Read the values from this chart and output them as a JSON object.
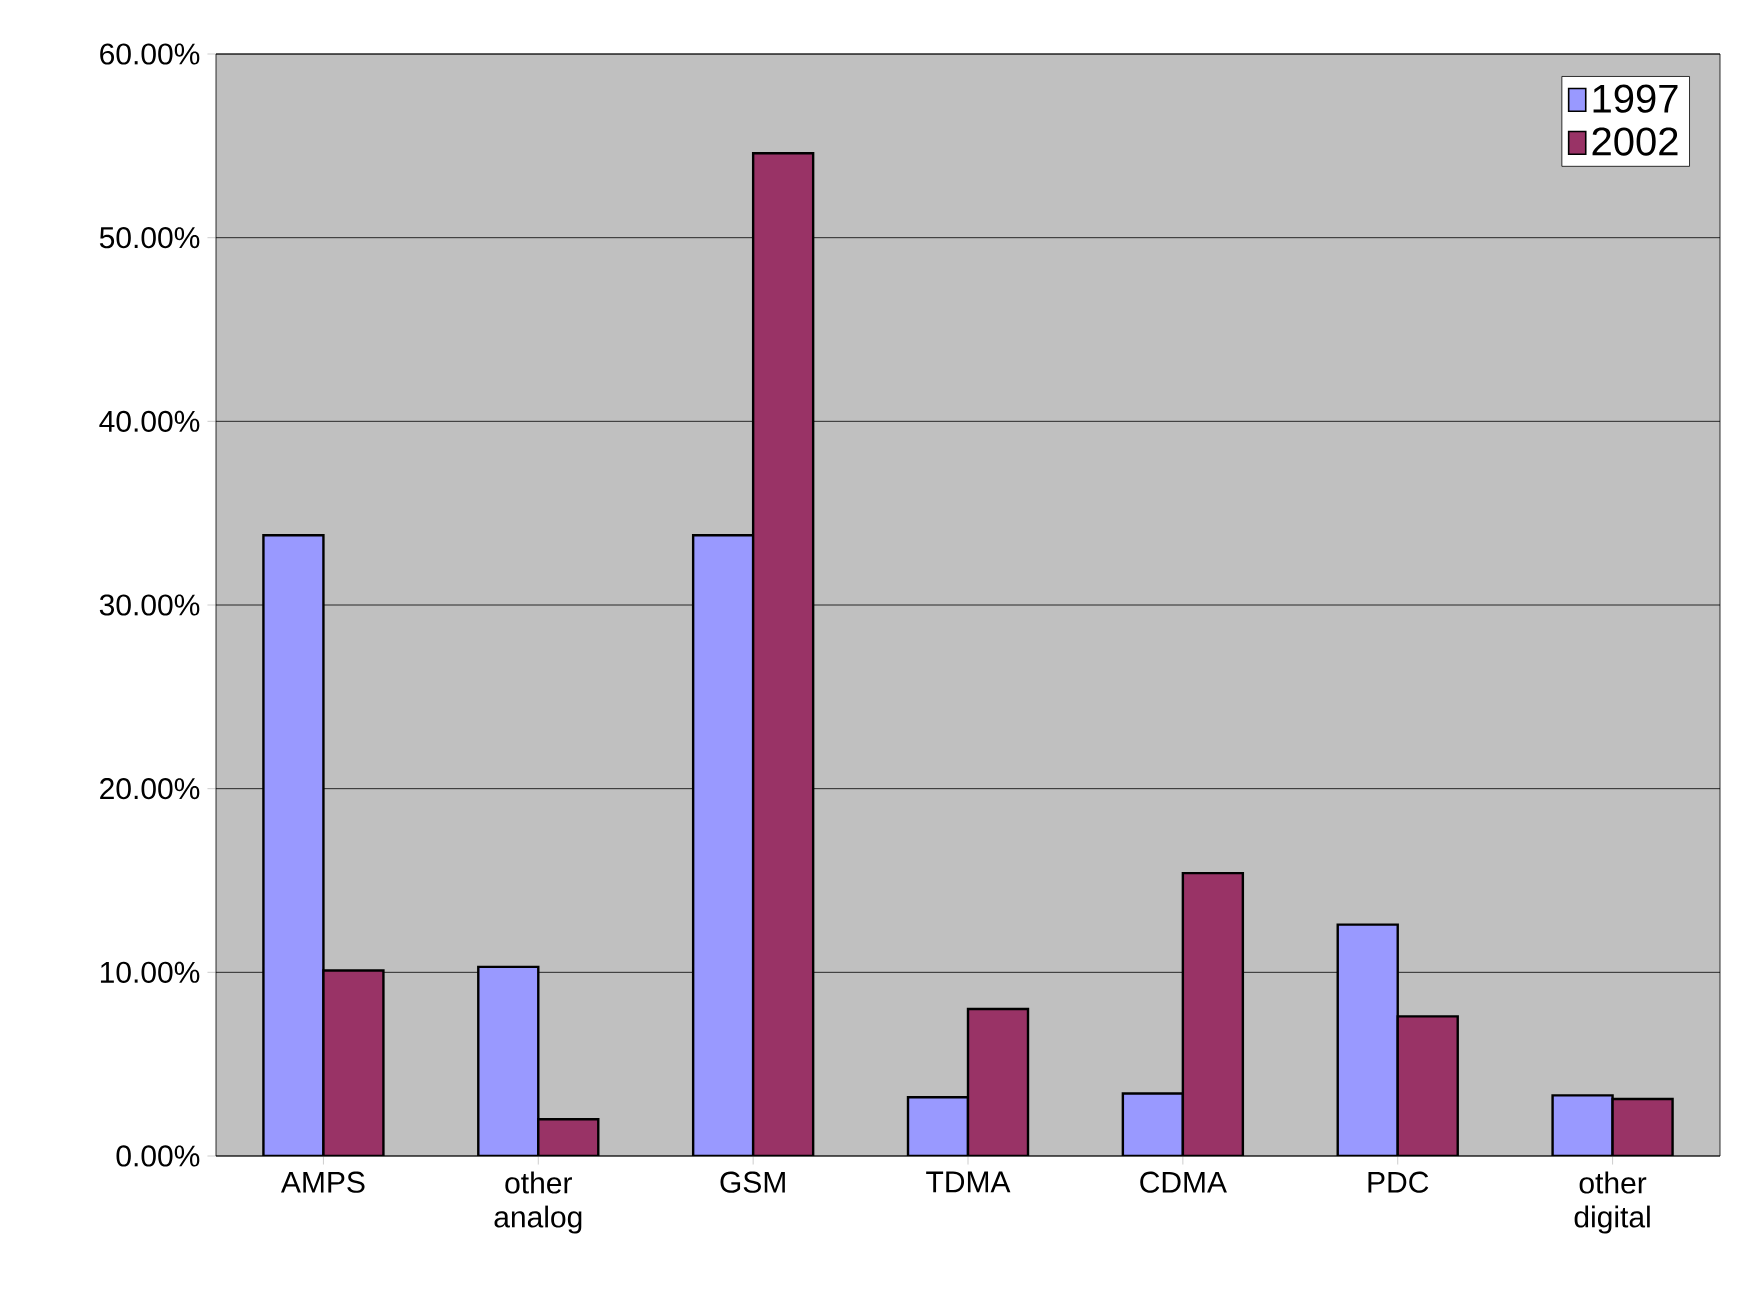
{
  "chart_data": {
    "type": "bar",
    "categories": [
      "AMPS",
      "other analog",
      "GSM",
      "TDMA",
      "CDMA",
      "PDC",
      "other digital"
    ],
    "series": [
      {
        "name": "1997",
        "color": "#9999ff",
        "values": [
          33.8,
          10.3,
          33.8,
          3.2,
          3.4,
          12.6,
          3.3
        ]
      },
      {
        "name": "2002",
        "color": "#993366",
        "values": [
          10.1,
          2.0,
          54.6,
          8.0,
          15.4,
          7.6,
          3.1
        ]
      }
    ],
    "ylim": [
      0,
      60
    ],
    "yticks": [
      {
        "value": 0,
        "label": "0.00%"
      },
      {
        "value": 10,
        "label": "10.00%"
      },
      {
        "value": 20,
        "label": "20.00%"
      },
      {
        "value": 30,
        "label": "30.00%"
      },
      {
        "value": 40,
        "label": "40.00%"
      },
      {
        "value": 50,
        "label": "50.00%"
      },
      {
        "value": 60,
        "label": "60.00%"
      }
    ],
    "grid": "y",
    "legend": "top right"
  }
}
